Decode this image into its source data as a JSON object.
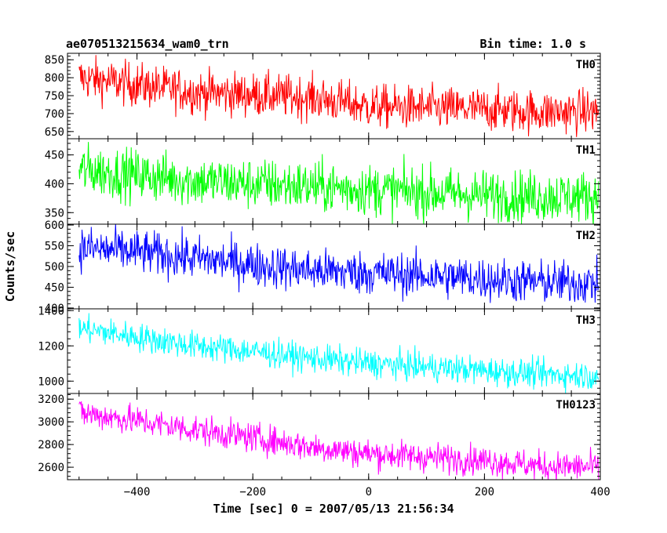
{
  "header": {
    "title": "ae070513215634_wam0_trn",
    "bin_time": "Bin time: 1.0 s"
  },
  "chart_data": {
    "type": "line",
    "title": "ae070513215634_wam0_trn",
    "xlabel": "Time [sec] 0 = 2007/05/13 21:56:34",
    "ylabel": "Counts/sec",
    "xlim": [
      -520,
      400
    ],
    "x_ticks": [
      -400,
      -200,
      0,
      200,
      400
    ],
    "x_start": -500,
    "x_end": 397,
    "bin_time_s": 1.0,
    "panels": [
      {
        "name": "TH0",
        "color": "#ff0000",
        "ylim": [
          630,
          868
        ],
        "y_ticks": [
          650,
          700,
          750,
          800,
          850
        ],
        "trend": [
          [
            -500,
            800
          ],
          [
            -400,
            780
          ],
          [
            -300,
            760
          ],
          [
            -100,
            745
          ],
          [
            0,
            720
          ],
          [
            100,
            715
          ],
          [
            200,
            712
          ],
          [
            300,
            705
          ],
          [
            397,
            705
          ]
        ],
        "noise": 30
      },
      {
        "name": "TH1",
        "color": "#00ff00",
        "ylim": [
          330,
          478
        ],
        "y_ticks": [
          350,
          400,
          450
        ],
        "trend": [
          [
            -500,
            425
          ],
          [
            -400,
            415
          ],
          [
            -300,
            405
          ],
          [
            -200,
            400
          ],
          [
            -100,
            395
          ],
          [
            0,
            390
          ],
          [
            100,
            385
          ],
          [
            200,
            380
          ],
          [
            300,
            378
          ],
          [
            397,
            378
          ]
        ],
        "noise": 22
      },
      {
        "name": "TH2",
        "color": "#0000ff",
        "ylim": [
          398,
          602
        ],
        "y_ticks": [
          400,
          450,
          500,
          550,
          600
        ],
        "trend": [
          [
            -500,
            545
          ],
          [
            -400,
            535
          ],
          [
            -300,
            520
          ],
          [
            -200,
            505
          ],
          [
            -100,
            490
          ],
          [
            0,
            485
          ],
          [
            100,
            478
          ],
          [
            200,
            470
          ],
          [
            300,
            462
          ],
          [
            397,
            460
          ]
        ],
        "noise": 26
      },
      {
        "name": "TH3",
        "color": "#00ffff",
        "ylim": [
          930,
          1410
        ],
        "y_ticks": [
          1000,
          1200,
          1400
        ],
        "trend": [
          [
            -500,
            1300
          ],
          [
            -400,
            1250
          ],
          [
            -300,
            1200
          ],
          [
            -200,
            1170
          ],
          [
            -100,
            1130
          ],
          [
            0,
            1100
          ],
          [
            100,
            1080
          ],
          [
            200,
            1060
          ],
          [
            300,
            1040
          ],
          [
            397,
            1030
          ]
        ],
        "noise": 40
      },
      {
        "name": "TH0123",
        "color": "#ff00ff",
        "ylim": [
          2490,
          3250
        ],
        "y_ticks": [
          2600,
          2800,
          3000,
          3200
        ],
        "trend": [
          [
            -500,
            3080
          ],
          [
            -400,
            3010
          ],
          [
            -300,
            2930
          ],
          [
            -200,
            2860
          ],
          [
            -100,
            2780
          ],
          [
            0,
            2720
          ],
          [
            100,
            2690
          ],
          [
            200,
            2660
          ],
          [
            300,
            2610
          ],
          [
            397,
            2600
          ]
        ],
        "noise": 65
      }
    ]
  }
}
